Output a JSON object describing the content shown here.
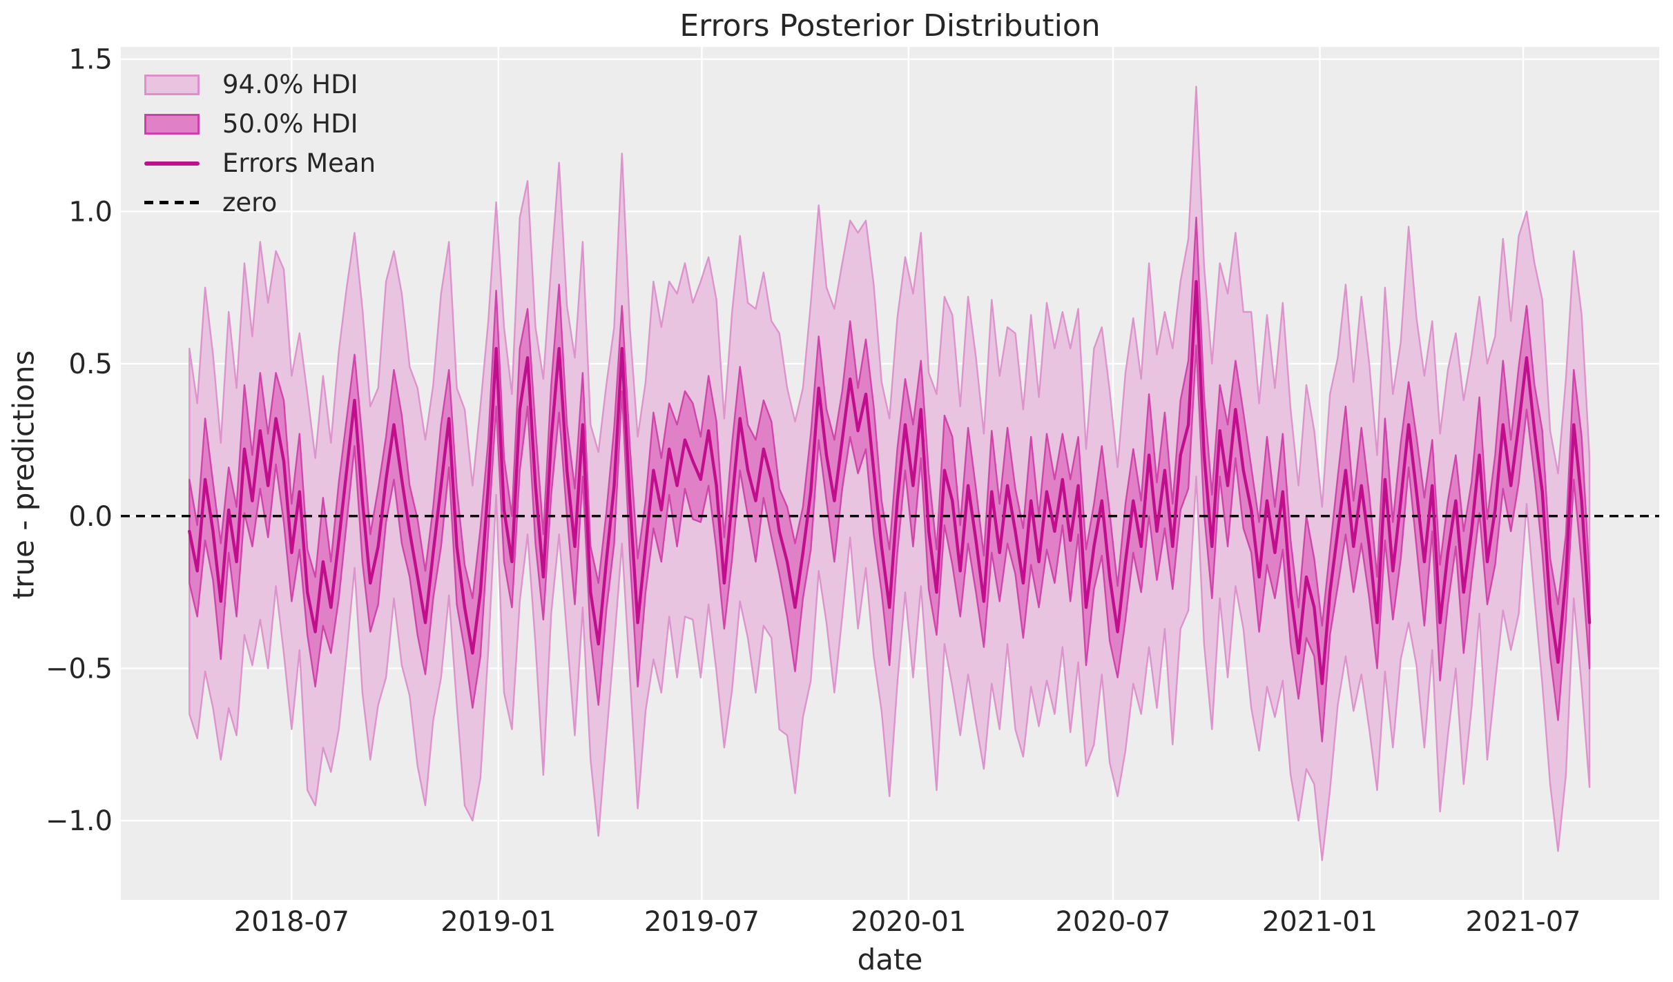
{
  "chart_data": {
    "type": "line",
    "title": "Errors Posterior Distribution",
    "xlabel": "date",
    "ylabel": "true - predictions",
    "legend_position": "upper left",
    "grid": true,
    "legend": [
      {
        "label": "94.0% HDI",
        "kind": "patch",
        "fill": "#e8c4e0",
        "edge": "#dc8fca"
      },
      {
        "label": "50.0% HDI",
        "kind": "patch",
        "fill": "#e080c6",
        "edge": "#cf3fa8"
      },
      {
        "label": "Errors Mean",
        "kind": "line",
        "color": "#c00e8d"
      },
      {
        "label": "zero",
        "kind": "dashed-line",
        "color": "#000000"
      }
    ],
    "colors": {
      "figure_background": "#ffffff",
      "plot_background": "#ededed",
      "grid": "#ffffff",
      "hdi94_fill": "#e8c4e0",
      "hdi94_edge": "#dc8fca",
      "hdi50_fill": "#e080c6",
      "hdi50_edge": "#cf3fa8",
      "mean_line": "#c00e8d",
      "zero_line": "#000000",
      "text": "#262626"
    },
    "xlim": [
      "2018-01-30",
      "2021-10-30"
    ],
    "ylim": [
      -1.26,
      1.54
    ],
    "x_ticks": [
      {
        "label": "2018-07",
        "date": "2018-07-01"
      },
      {
        "label": "2019-01",
        "date": "2019-01-01"
      },
      {
        "label": "2019-07",
        "date": "2019-07-01"
      },
      {
        "label": "2020-01",
        "date": "2020-01-01"
      },
      {
        "label": "2020-07",
        "date": "2020-07-01"
      },
      {
        "label": "2021-01",
        "date": "2021-01-01"
      },
      {
        "label": "2021-07",
        "date": "2021-07-01"
      }
    ],
    "y_ticks": [
      {
        "value": 1.5,
        "label": "1.5"
      },
      {
        "value": 1.0,
        "label": "1.0"
      },
      {
        "value": 0.5,
        "label": "0.5"
      },
      {
        "value": 0.0,
        "label": "0.0"
      },
      {
        "value": -0.5,
        "label": "−0.5"
      },
      {
        "value": -1.0,
        "label": "−1.0"
      }
    ],
    "zero_line": 0.0,
    "x_start": "2018-04-01",
    "x_step_days": 7,
    "n_points": 179,
    "series": {
      "mean": [
        -0.05,
        -0.18,
        0.12,
        -0.05,
        -0.28,
        0.02,
        -0.15,
        0.22,
        0.05,
        0.28,
        0.1,
        0.32,
        0.18,
        -0.12,
        0.08,
        -0.25,
        -0.38,
        -0.15,
        -0.3,
        -0.08,
        0.15,
        0.38,
        0.05,
        -0.22,
        -0.1,
        0.12,
        0.3,
        0.12,
        -0.05,
        -0.2,
        -0.35,
        -0.12,
        0.1,
        0.32,
        -0.1,
        -0.3,
        -0.45,
        -0.25,
        0.1,
        0.55,
        0.02,
        -0.15,
        0.35,
        0.52,
        0.1,
        -0.2,
        0.25,
        0.55,
        0.15,
        -0.1,
        0.3,
        -0.25,
        -0.42,
        -0.15,
        0.1,
        0.55,
        0.05,
        -0.35,
        -0.1,
        0.15,
        0.02,
        0.22,
        0.1,
        0.25,
        0.18,
        0.12,
        0.28,
        0.1,
        -0.22,
        0.05,
        0.32,
        0.15,
        0.05,
        0.22,
        0.12,
        -0.05,
        -0.15,
        -0.3,
        -0.12,
        0.08,
        0.42,
        0.2,
        0.05,
        0.25,
        0.45,
        0.28,
        0.4,
        0.15,
        -0.1,
        -0.3,
        0.05,
        0.3,
        0.1,
        0.35,
        -0.05,
        -0.25,
        0.15,
        0.05,
        -0.18,
        0.1,
        -0.08,
        -0.28,
        0.08,
        -0.12,
        0.1,
        -0.05,
        -0.22,
        0.05,
        -0.15,
        0.08,
        -0.05,
        0.12,
        -0.08,
        0.1,
        -0.3,
        -0.1,
        0.05,
        -0.2,
        -0.38,
        -0.15,
        0.05,
        -0.1,
        0.2,
        -0.05,
        0.15,
        -0.1,
        0.2,
        0.3,
        0.77,
        0.2,
        -0.1,
        0.28,
        0.1,
        0.35,
        0.15,
        0.02,
        -0.2,
        0.05,
        -0.12,
        0.08,
        -0.25,
        -0.45,
        -0.2,
        -0.3,
        -0.55,
        -0.25,
        -0.05,
        0.15,
        -0.1,
        0.1,
        -0.1,
        -0.35,
        0.12,
        -0.18,
        0.05,
        0.3,
        0.08,
        -0.15,
        0.1,
        -0.35,
        -0.12,
        0.05,
        -0.25,
        -0.05,
        0.2,
        -0.15,
        0.02,
        0.3,
        0.1,
        0.3,
        0.52,
        0.28,
        0.08,
        -0.3,
        -0.48,
        -0.2,
        0.3,
        0.05,
        -0.35
      ],
      "hdi94_halfwidth": [
        0.6,
        0.55,
        0.63,
        0.58,
        0.52,
        0.65,
        0.57,
        0.61,
        0.54,
        0.62,
        0.6,
        0.55,
        0.63,
        0.58,
        0.52,
        0.65,
        0.57,
        0.61,
        0.54,
        0.62,
        0.6,
        0.55,
        0.63,
        0.58,
        0.52,
        0.65,
        0.57,
        0.61,
        0.54,
        0.62,
        0.6,
        0.55,
        0.63,
        0.58,
        0.52,
        0.65,
        0.55,
        0.61,
        0.54,
        0.48,
        0.6,
        0.55,
        0.63,
        0.58,
        0.52,
        0.65,
        0.57,
        0.61,
        0.54,
        0.62,
        0.6,
        0.55,
        0.63,
        0.58,
        0.52,
        0.64,
        0.57,
        0.61,
        0.54,
        0.62,
        0.6,
        0.55,
        0.63,
        0.58,
        0.52,
        0.65,
        0.57,
        0.61,
        0.54,
        0.62,
        0.6,
        0.55,
        0.63,
        0.58,
        0.52,
        0.65,
        0.57,
        0.61,
        0.54,
        0.62,
        0.6,
        0.55,
        0.63,
        0.58,
        0.52,
        0.65,
        0.57,
        0.61,
        0.54,
        0.62,
        0.6,
        0.55,
        0.63,
        0.58,
        0.52,
        0.65,
        0.57,
        0.61,
        0.54,
        0.62,
        0.6,
        0.55,
        0.63,
        0.58,
        0.52,
        0.65,
        0.57,
        0.61,
        0.54,
        0.62,
        0.6,
        0.55,
        0.63,
        0.58,
        0.52,
        0.65,
        0.57,
        0.61,
        0.54,
        0.62,
        0.6,
        0.55,
        0.63,
        0.58,
        0.52,
        0.65,
        0.57,
        0.61,
        0.64,
        0.62,
        0.6,
        0.55,
        0.63,
        0.58,
        0.52,
        0.65,
        0.57,
        0.61,
        0.54,
        0.62,
        0.6,
        0.55,
        0.63,
        0.58,
        0.58,
        0.65,
        0.57,
        0.61,
        0.54,
        0.62,
        0.6,
        0.55,
        0.63,
        0.58,
        0.52,
        0.65,
        0.57,
        0.61,
        0.54,
        0.62,
        0.6,
        0.55,
        0.63,
        0.58,
        0.52,
        0.65,
        0.57,
        0.61,
        0.54,
        0.62,
        0.48,
        0.55,
        0.63,
        0.58,
        0.62,
        0.65,
        0.57,
        0.61,
        0.54
      ],
      "hdi50_halfwidth": [
        0.17,
        0.15,
        0.2,
        0.16,
        0.19,
        0.14,
        0.18,
        0.21,
        0.15,
        0.19,
        0.17,
        0.15,
        0.2,
        0.16,
        0.19,
        0.14,
        0.18,
        0.21,
        0.15,
        0.19,
        0.17,
        0.15,
        0.2,
        0.16,
        0.19,
        0.14,
        0.18,
        0.21,
        0.15,
        0.19,
        0.17,
        0.15,
        0.2,
        0.16,
        0.19,
        0.14,
        0.18,
        0.21,
        0.15,
        0.19,
        0.17,
        0.15,
        0.2,
        0.16,
        0.19,
        0.14,
        0.18,
        0.21,
        0.15,
        0.19,
        0.17,
        0.15,
        0.2,
        0.16,
        0.19,
        0.14,
        0.18,
        0.21,
        0.15,
        0.19,
        0.17,
        0.15,
        0.2,
        0.16,
        0.19,
        0.14,
        0.18,
        0.21,
        0.15,
        0.19,
        0.17,
        0.15,
        0.2,
        0.16,
        0.19,
        0.14,
        0.18,
        0.21,
        0.15,
        0.19,
        0.17,
        0.15,
        0.2,
        0.16,
        0.19,
        0.14,
        0.18,
        0.21,
        0.15,
        0.19,
        0.17,
        0.15,
        0.2,
        0.16,
        0.19,
        0.14,
        0.18,
        0.21,
        0.15,
        0.19,
        0.17,
        0.15,
        0.2,
        0.16,
        0.19,
        0.14,
        0.18,
        0.21,
        0.15,
        0.19,
        0.17,
        0.15,
        0.2,
        0.16,
        0.19,
        0.14,
        0.18,
        0.21,
        0.15,
        0.19,
        0.17,
        0.15,
        0.2,
        0.16,
        0.19,
        0.14,
        0.18,
        0.21,
        0.21,
        0.19,
        0.17,
        0.15,
        0.2,
        0.16,
        0.19,
        0.14,
        0.18,
        0.21,
        0.15,
        0.19,
        0.17,
        0.15,
        0.2,
        0.16,
        0.19,
        0.14,
        0.18,
        0.21,
        0.15,
        0.19,
        0.17,
        0.15,
        0.2,
        0.16,
        0.19,
        0.14,
        0.18,
        0.21,
        0.15,
        0.19,
        0.17,
        0.15,
        0.2,
        0.16,
        0.19,
        0.14,
        0.18,
        0.21,
        0.15,
        0.19,
        0.17,
        0.15,
        0.2,
        0.16,
        0.19,
        0.14,
        0.18,
        0.21,
        0.15
      ]
    }
  }
}
